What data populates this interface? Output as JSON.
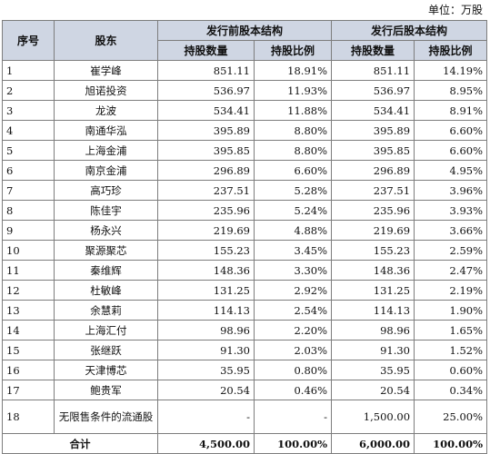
{
  "unit_label": "单位：万股",
  "header": {
    "col_no": "序号",
    "col_holder": "股东",
    "group_before": "发行前股本结构",
    "group_after": "发行后股本结构",
    "shares": "持股数量",
    "ratio": "持股比例"
  },
  "rows": [
    {
      "no": "1",
      "holder": "崔学峰",
      "before_shares": "851.11",
      "before_ratio": "18.91%",
      "after_shares": "851.11",
      "after_ratio": "14.19%"
    },
    {
      "no": "2",
      "holder": "旭诺投资",
      "before_shares": "536.97",
      "before_ratio": "11.93%",
      "after_shares": "536.97",
      "after_ratio": "8.95%"
    },
    {
      "no": "3",
      "holder": "龙波",
      "before_shares": "534.41",
      "before_ratio": "11.88%",
      "after_shares": "534.41",
      "after_ratio": "8.91%"
    },
    {
      "no": "4",
      "holder": "南通华泓",
      "before_shares": "395.89",
      "before_ratio": "8.80%",
      "after_shares": "395.89",
      "after_ratio": "6.60%"
    },
    {
      "no": "5",
      "holder": "上海金浦",
      "before_shares": "395.85",
      "before_ratio": "8.80%",
      "after_shares": "395.85",
      "after_ratio": "6.60%"
    },
    {
      "no": "6",
      "holder": "南京金浦",
      "before_shares": "296.89",
      "before_ratio": "6.60%",
      "after_shares": "296.89",
      "after_ratio": "4.95%"
    },
    {
      "no": "7",
      "holder": "高巧珍",
      "before_shares": "237.51",
      "before_ratio": "5.28%",
      "after_shares": "237.51",
      "after_ratio": "3.96%"
    },
    {
      "no": "8",
      "holder": "陈佳宇",
      "before_shares": "235.96",
      "before_ratio": "5.24%",
      "after_shares": "235.96",
      "after_ratio": "3.93%"
    },
    {
      "no": "9",
      "holder": "杨永兴",
      "before_shares": "219.69",
      "before_ratio": "4.88%",
      "after_shares": "219.69",
      "after_ratio": "3.66%"
    },
    {
      "no": "10",
      "holder": "聚源聚芯",
      "before_shares": "155.23",
      "before_ratio": "3.45%",
      "after_shares": "155.23",
      "after_ratio": "2.59%"
    },
    {
      "no": "11",
      "holder": "秦维辉",
      "before_shares": "148.36",
      "before_ratio": "3.30%",
      "after_shares": "148.36",
      "after_ratio": "2.47%"
    },
    {
      "no": "12",
      "holder": "杜敏峰",
      "before_shares": "131.25",
      "before_ratio": "2.92%",
      "after_shares": "131.25",
      "after_ratio": "2.19%"
    },
    {
      "no": "13",
      "holder": "余慧莉",
      "before_shares": "114.13",
      "before_ratio": "2.54%",
      "after_shares": "114.13",
      "after_ratio": "1.90%"
    },
    {
      "no": "14",
      "holder": "上海汇付",
      "before_shares": "98.96",
      "before_ratio": "2.20%",
      "after_shares": "98.96",
      "after_ratio": "1.65%"
    },
    {
      "no": "15",
      "holder": "张继跃",
      "before_shares": "91.30",
      "before_ratio": "2.03%",
      "after_shares": "91.30",
      "after_ratio": "1.52%"
    },
    {
      "no": "16",
      "holder": "天津博芯",
      "before_shares": "35.95",
      "before_ratio": "0.80%",
      "after_shares": "35.95",
      "after_ratio": "0.60%"
    },
    {
      "no": "17",
      "holder": "鲍贵军",
      "before_shares": "20.54",
      "before_ratio": "0.46%",
      "after_shares": "20.54",
      "after_ratio": "0.34%"
    },
    {
      "no": "18",
      "holder": "无限售条件的流通股",
      "before_shares": "-",
      "before_ratio": "-",
      "after_shares": "1,500.00",
      "after_ratio": "25.00%"
    }
  ],
  "total": {
    "label": "合计",
    "before_shares": "4,500.00",
    "before_ratio": "100.00%",
    "after_shares": "6,000.00",
    "after_ratio": "100.00%"
  }
}
